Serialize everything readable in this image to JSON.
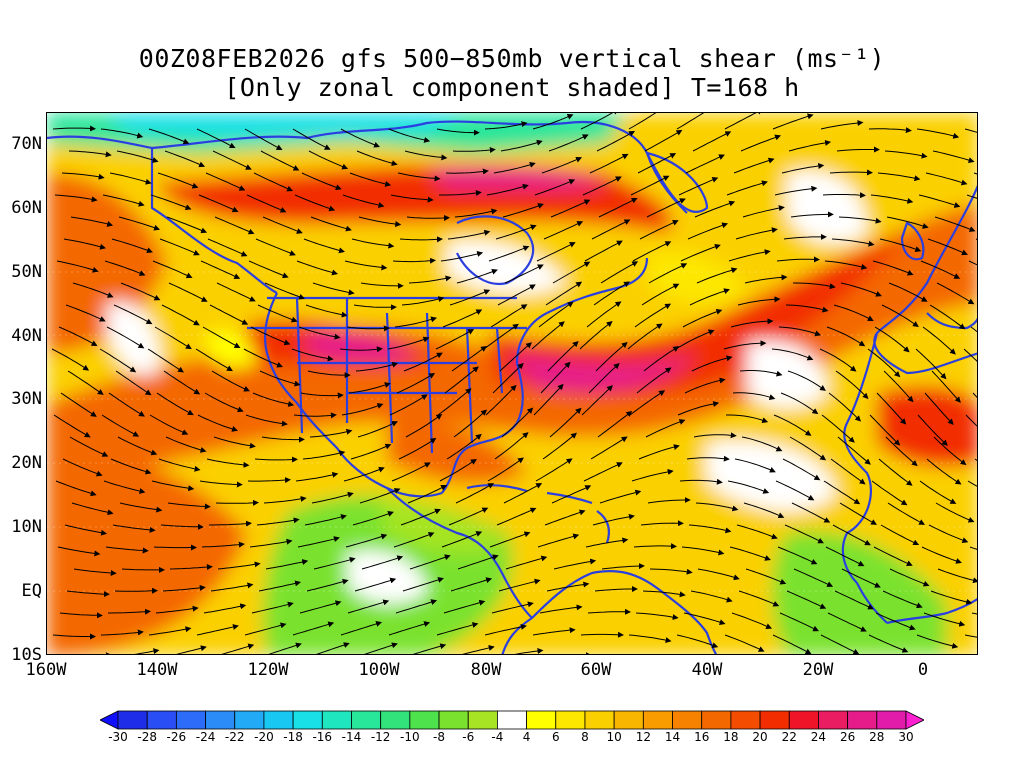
{
  "title": {
    "line1": "00Z08FEB2026 gfs 500−850mb vertical shear (ms⁻¹)",
    "line2": "[Only zonal component shaded] T=168 h"
  },
  "map": {
    "lat_labels": [
      "70N",
      "60N",
      "50N",
      "40N",
      "30N",
      "20N",
      "10N",
      "EQ",
      "10S"
    ],
    "lon_labels": [
      "160W",
      "140W",
      "120W",
      "100W",
      "80W",
      "60W",
      "40W",
      "20W",
      "0"
    ],
    "coastline_color": "#2b3fe0"
  },
  "colorbar": {
    "labels": [
      "-30",
      "-28",
      "-26",
      "-24",
      "-22",
      "-20",
      "-18",
      "-16",
      "-14",
      "-12",
      "-10",
      "-8",
      "-6",
      "-4",
      "4",
      "6",
      "8",
      "10",
      "12",
      "14",
      "16",
      "18",
      "20",
      "22",
      "24",
      "26",
      "28",
      "30"
    ],
    "colors": [
      "#1e2de8",
      "#2a4ef5",
      "#2d6cf8",
      "#2b8cf8",
      "#22aaf6",
      "#18c8f2",
      "#18e0e6",
      "#1fe6bf",
      "#28e69a",
      "#32e27a",
      "#4ee24c",
      "#7ae22e",
      "#a6e424",
      "#ffffff",
      "#ffff00",
      "#fde700",
      "#fbd000",
      "#f9b600",
      "#f89c00",
      "#f68200",
      "#f46800",
      "#f44c00",
      "#f22e00",
      "#f01428",
      "#ea1c62",
      "#e61c8a",
      "#e21caa"
    ]
  },
  "legend": {
    "shading": "zonal component",
    "vectors": "streamlines"
  }
}
